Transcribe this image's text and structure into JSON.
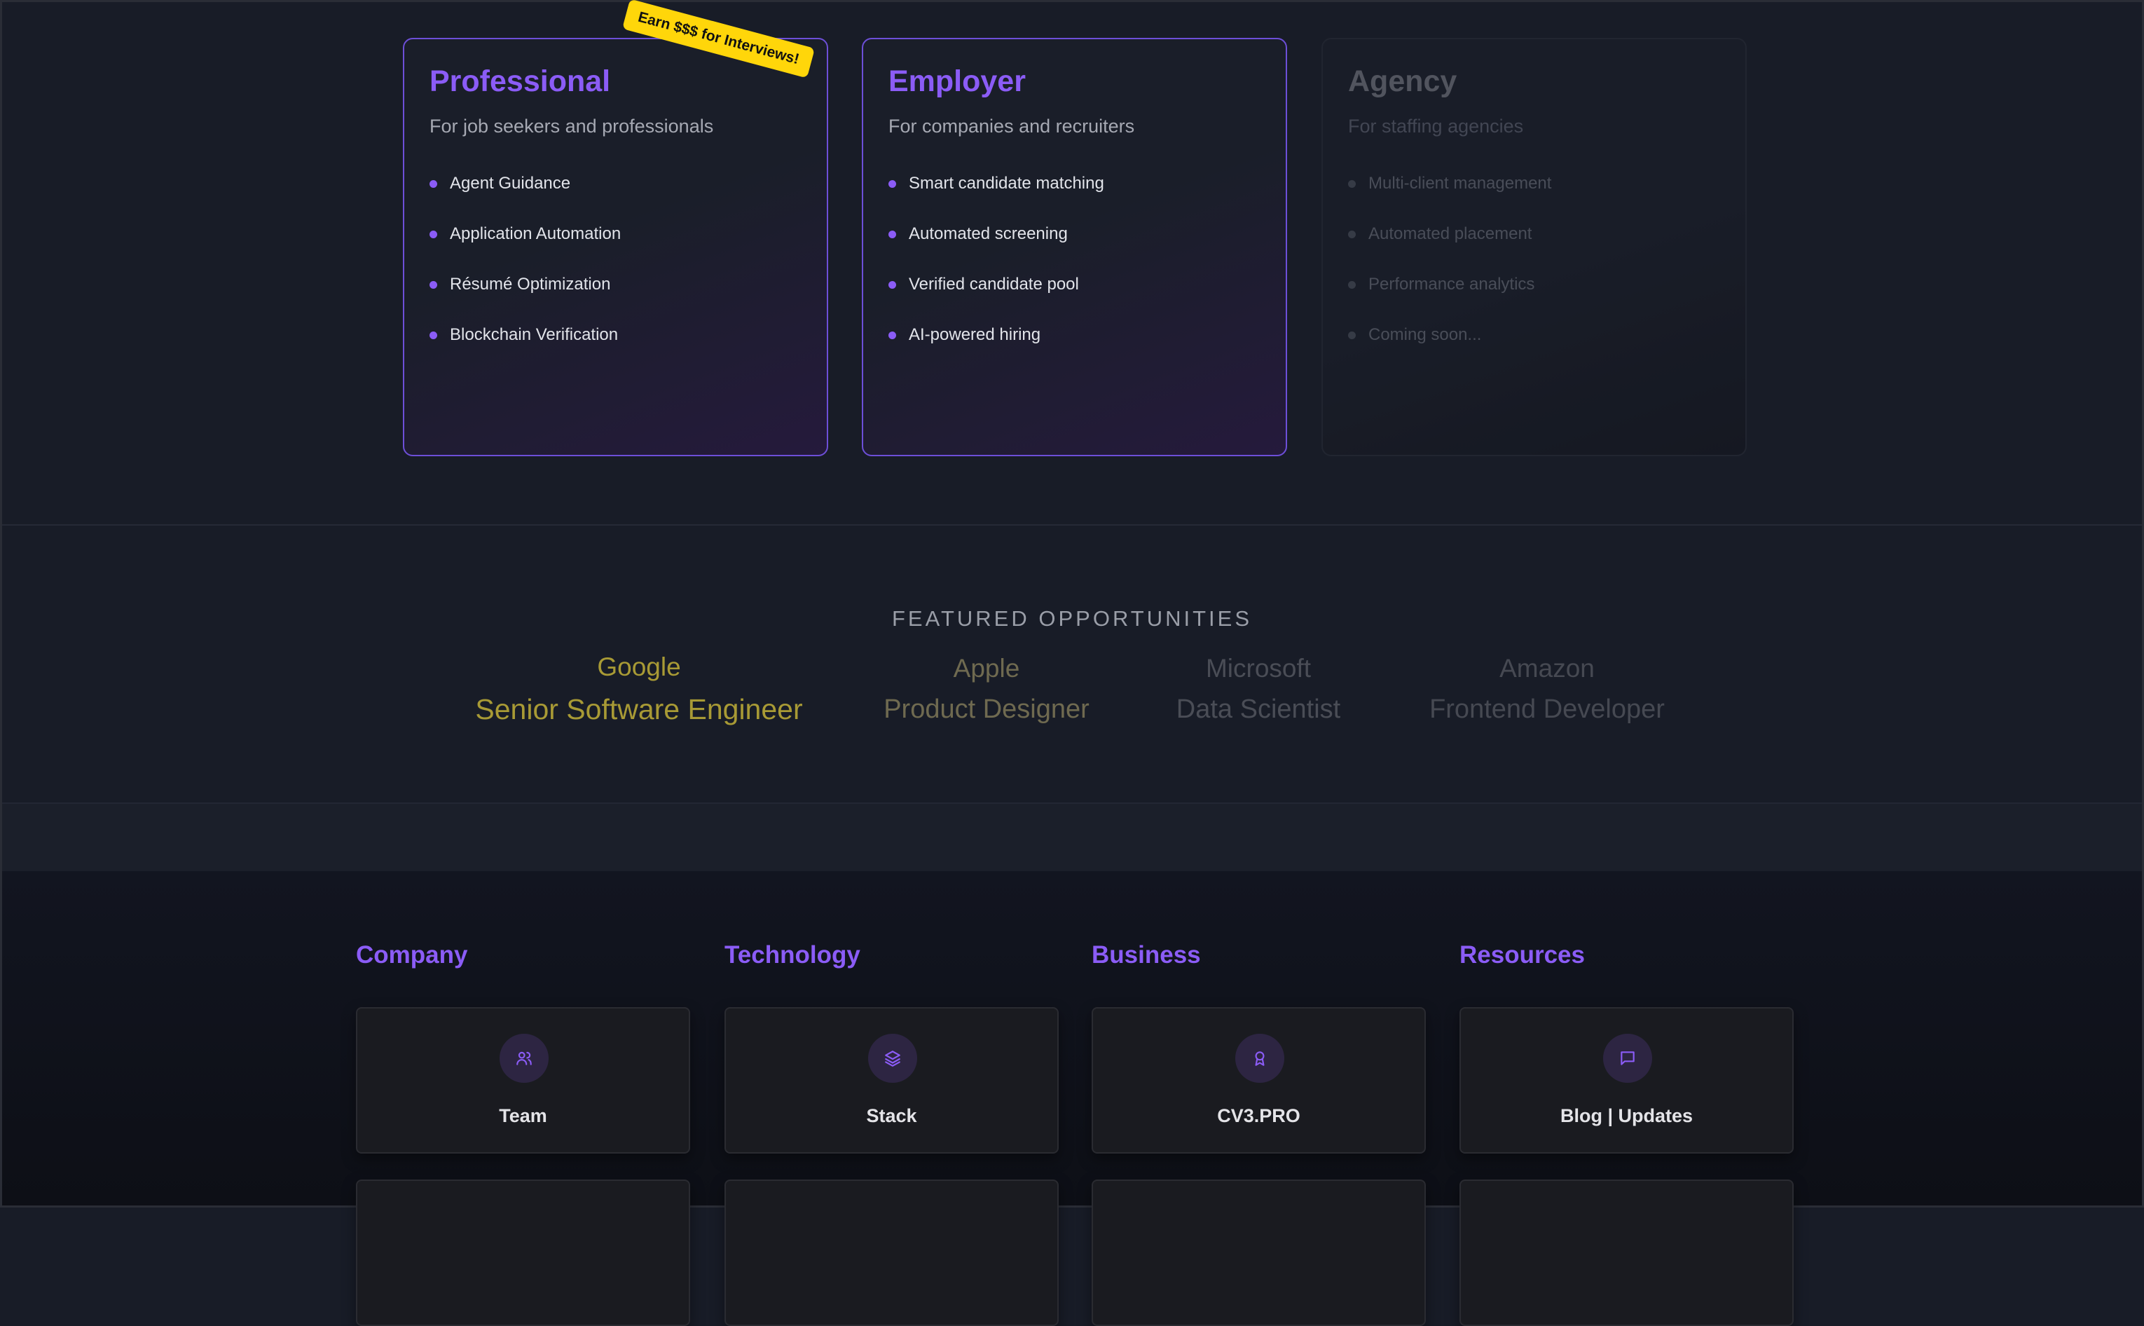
{
  "plans": [
    {
      "title": "Professional",
      "subtitle": "For job seekers and professionals",
      "features": [
        "Agent Guidance",
        "Application Automation",
        "Résumé Optimization",
        "Blockchain Verification"
      ],
      "badge": "Earn $$$ for Interviews!"
    },
    {
      "title": "Employer",
      "subtitle": "For companies and recruiters",
      "features": [
        "Smart candidate matching",
        "Automated screening",
        "Verified candidate pool",
        "AI-powered hiring"
      ]
    },
    {
      "title": "Agency",
      "subtitle": "For staffing agencies",
      "features": [
        "Multi-client management",
        "Automated placement",
        "Performance analytics",
        "Coming soon..."
      ]
    }
  ],
  "featured": {
    "heading": "FEATURED OPPORTUNITIES",
    "items": [
      {
        "company": "Google",
        "role": "Senior Software Engineer",
        "color": "#a89a35"
      },
      {
        "company": "Apple",
        "role": "Product Designer",
        "color": "#6f6a50"
      },
      {
        "company": "Microsoft",
        "role": "Data Scientist",
        "color": "#4a4d56"
      },
      {
        "company": "Amazon",
        "role": "Frontend Developer",
        "color": "#464952"
      }
    ]
  },
  "footer": {
    "columns": [
      {
        "heading": "Company",
        "card": {
          "label": "Team",
          "icon": "users-icon"
        }
      },
      {
        "heading": "Technology",
        "card": {
          "label": "Stack",
          "icon": "layers-icon"
        }
      },
      {
        "heading": "Business",
        "card": {
          "label": "CV3.PRO",
          "icon": "award-icon"
        }
      },
      {
        "heading": "Resources",
        "card": {
          "label": "Blog | Updates",
          "icon": "message-square-icon"
        }
      }
    ]
  },
  "colors": {
    "accent": "#8b5cf6",
    "badge": "#ffd60a"
  }
}
